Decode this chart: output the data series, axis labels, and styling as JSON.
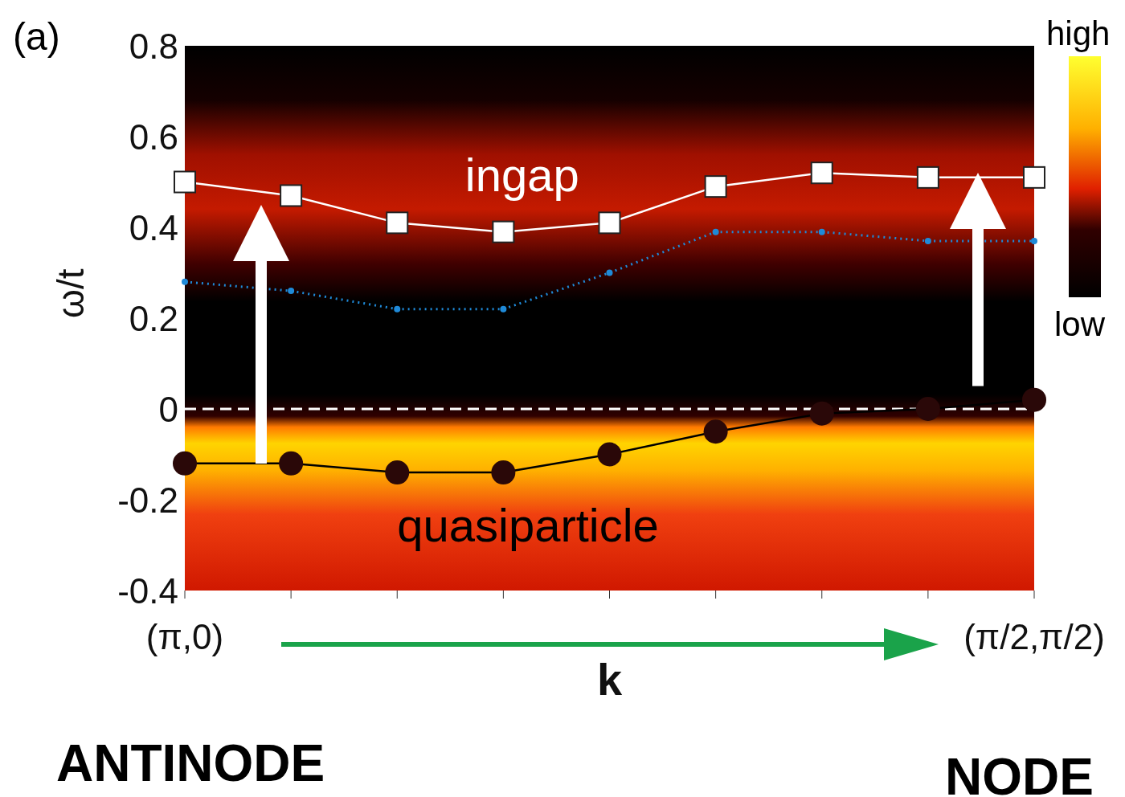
{
  "chart_data": {
    "type": "line",
    "xlabel": "k",
    "ylabel": "ω/t",
    "categories": [
      "(π,0)",
      null,
      null,
      null,
      null,
      null,
      null,
      null,
      "(π/2,π/2)"
    ],
    "series": [
      {
        "name": "ingap",
        "color": "#ffffff",
        "marker": "square",
        "line_style": "solid",
        "values": [
          0.5,
          0.47,
          0.41,
          0.39,
          0.41,
          0.49,
          0.52,
          0.51,
          0.51
        ]
      },
      {
        "color": "#1f8ad8",
        "marker": "circle",
        "line_style": "dotted",
        "values": [
          0.28,
          0.26,
          0.22,
          0.22,
          0.3,
          0.39,
          0.39,
          0.37,
          0.37
        ]
      },
      {
        "name": "quasiparticle",
        "color": "#000000",
        "marker": "circle",
        "line_style": "solid",
        "values": [
          -0.12,
          -0.12,
          -0.14,
          -0.14,
          -0.1,
          -0.05,
          -0.01,
          0.0,
          0.02
        ]
      }
    ],
    "ylim": [
      -0.4,
      0.8
    ],
    "yticks": [
      -0.4,
      -0.2,
      0,
      0.2,
      0.4,
      0.6,
      0.8
    ],
    "ref_lines": [
      {
        "axis": "y",
        "value": 0,
        "color": "#ffffff",
        "line_style": "dashed"
      }
    ],
    "annotations": [
      "(a)",
      "high",
      "low",
      "ANTINODE",
      "NODE"
    ]
  }
}
